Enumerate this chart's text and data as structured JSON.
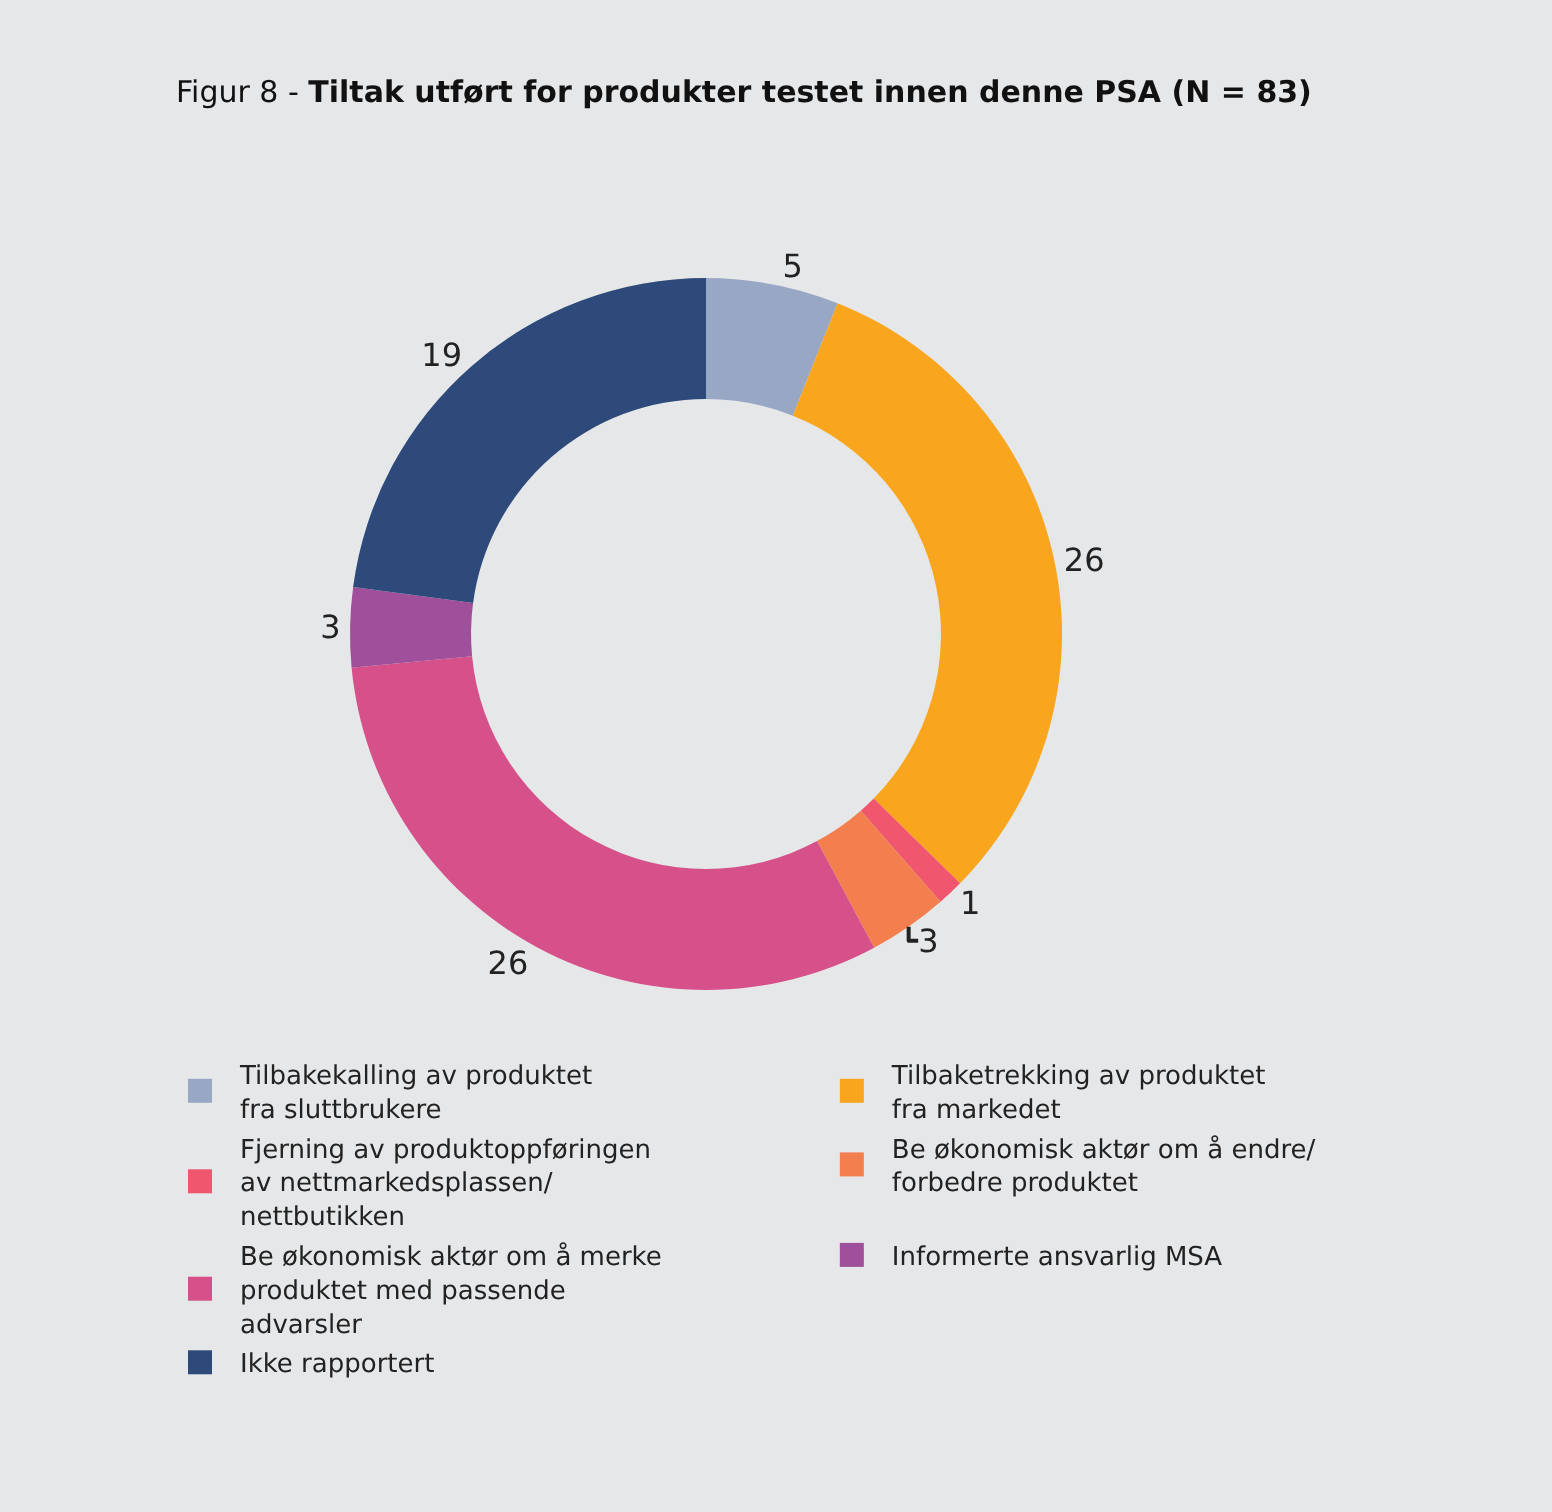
{
  "chart_data": {
    "type": "donut",
    "title": "Figur 8 - Tiltak utført for produkter testet innen denne PSA (N = 83)",
    "categories": [
      "Tilbakekalling av produktet fra sluttbrukere",
      "Tilbaketrekking av produktet fra markedet",
      "Fjerning av produktoppføringen av nettmarkedsplassen/ nettbutikken",
      "Be økonomisk aktør om å endre/ forbedre produktet",
      "Be økonomisk aktør om å merke produktet med passende advarsler",
      "Informerte ansvarlig MSA",
      "Ikke rapportert"
    ],
    "values": [
      5,
      26,
      1,
      3,
      26,
      3,
      19
    ],
    "colors": [
      "#98a8c4",
      "#f9a61e",
      "#f0566e",
      "#f47f4e",
      "#d6508a",
      "#a0509a",
      "#2e4a7a"
    ],
    "data_labels": true,
    "legend": "bottom"
  }
}
